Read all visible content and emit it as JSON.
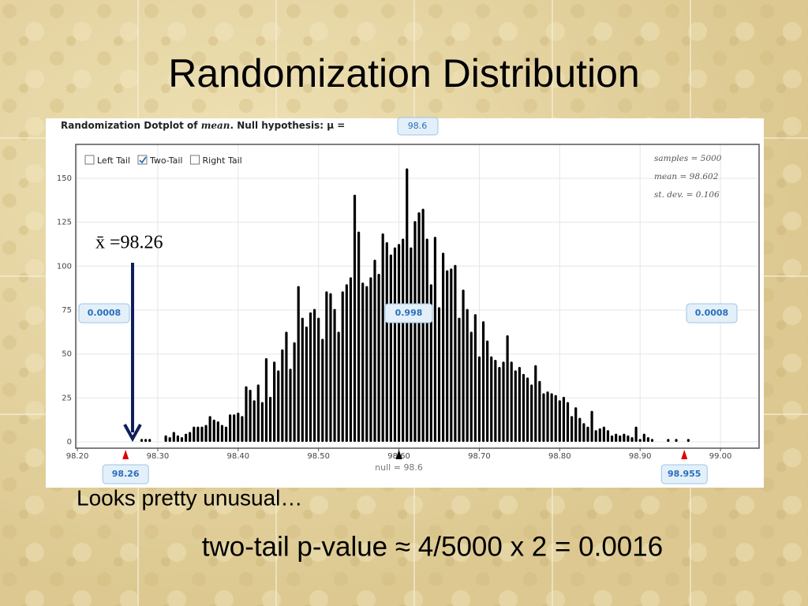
{
  "slide": {
    "title": "Randomization Distribution",
    "comment": "Looks pretty unusual…",
    "conclusion": "two-tail p-value ≈ 4/5000 x 2 = 0.0016",
    "annotation": "x̄ =98.26"
  },
  "chart_data": {
    "type": "dotplot",
    "title_parts": [
      "Randomization Dotplot of ",
      "mean",
      ". Null hypothesis: μ = "
    ],
    "null_value": "98.6",
    "tail_options": [
      {
        "label": "Left Tail",
        "checked": false
      },
      {
        "label": "Two-Tail",
        "checked": true
      },
      {
        "label": "Right Tail",
        "checked": false
      }
    ],
    "stats": [
      "samples = 5000",
      "mean = 98.602",
      "st. dev. = 0.106"
    ],
    "tail_proportions": [
      "0.0008",
      "0.998",
      "0.0008"
    ],
    "cutoffs": [
      98.26,
      98.955
    ],
    "null_marker": 98.6,
    "null_label": "null = 98.6",
    "color": "#000000",
    "x": [
      98.28,
      98.285,
      98.29,
      98.31,
      98.315,
      98.32,
      98.325,
      98.33,
      98.335,
      98.34,
      98.345,
      98.35,
      98.355,
      98.36,
      98.365,
      98.37,
      98.375,
      98.38,
      98.385,
      98.39,
      98.395,
      98.4,
      98.405,
      98.41,
      98.415,
      98.42,
      98.425,
      98.43,
      98.435,
      98.44,
      98.445,
      98.45,
      98.455,
      98.46,
      98.465,
      98.47,
      98.475,
      98.48,
      98.485,
      98.49,
      98.495,
      98.5,
      98.505,
      98.51,
      98.515,
      98.52,
      98.525,
      98.53,
      98.535,
      98.54,
      98.545,
      98.55,
      98.555,
      98.56,
      98.565,
      98.57,
      98.575,
      98.58,
      98.585,
      98.59,
      98.595,
      98.6,
      98.605,
      98.61,
      98.615,
      98.62,
      98.625,
      98.63,
      98.635,
      98.64,
      98.645,
      98.65,
      98.655,
      98.66,
      98.665,
      98.67,
      98.675,
      98.68,
      98.685,
      98.69,
      98.695,
      98.7,
      98.705,
      98.71,
      98.715,
      98.72,
      98.725,
      98.73,
      98.735,
      98.74,
      98.745,
      98.75,
      98.755,
      98.76,
      98.765,
      98.77,
      98.775,
      98.78,
      98.785,
      98.79,
      98.795,
      98.8,
      98.805,
      98.81,
      98.815,
      98.82,
      98.825,
      98.83,
      98.835,
      98.84,
      98.845,
      98.85,
      98.855,
      98.86,
      98.865,
      98.87,
      98.875,
      98.88,
      98.885,
      98.89,
      98.895,
      98.9,
      98.905,
      98.91,
      98.915,
      98.935,
      98.945,
      98.96
    ],
    "values": [
      1,
      1,
      1,
      3,
      2,
      5,
      3,
      2,
      4,
      5,
      8,
      8,
      8,
      9,
      14,
      12,
      11,
      9,
      8,
      15,
      15,
      16,
      14,
      31,
      29,
      23,
      32,
      22,
      47,
      25,
      45,
      40,
      52,
      62,
      41,
      56,
      88,
      70,
      65,
      73,
      75,
      70,
      58,
      85,
      84,
      75,
      62,
      85,
      89,
      93,
      140,
      119,
      90,
      88,
      93,
      103,
      95,
      118,
      113,
      106,
      110,
      112,
      115,
      155,
      110,
      125,
      130,
      132,
      115,
      89,
      116,
      76,
      107,
      97,
      98,
      100,
      70,
      86,
      75,
      62,
      72,
      48,
      68,
      57,
      48,
      46,
      42,
      45,
      60,
      45,
      40,
      42,
      38,
      36,
      32,
      43,
      34,
      27,
      28,
      27,
      26,
      23,
      25,
      22,
      14,
      19,
      13,
      10,
      8,
      17,
      6,
      7,
      8,
      6,
      3,
      4,
      3,
      4,
      3,
      2,
      8,
      1,
      4,
      2,
      1,
      1,
      1,
      1
    ],
    "xlim": [
      98.198,
      99.048
    ],
    "ylim": [
      -3.6,
      169.3
    ],
    "xticks": [
      {
        "value": 98.2,
        "label": "98.20"
      },
      {
        "value": 98.3,
        "label": "98.30"
      },
      {
        "value": 98.4,
        "label": "98.40"
      },
      {
        "value": 98.5,
        "label": "98.50"
      },
      {
        "value": 98.6,
        "label": "98.60"
      },
      {
        "value": 98.7,
        "label": "98.70"
      },
      {
        "value": 98.8,
        "label": "98.80"
      },
      {
        "value": 98.9,
        "label": "98.90"
      },
      {
        "value": 99,
        "label": "99.00"
      }
    ],
    "yticks": [
      0,
      25,
      50,
      75,
      100,
      125,
      150
    ],
    "grid": true
  }
}
